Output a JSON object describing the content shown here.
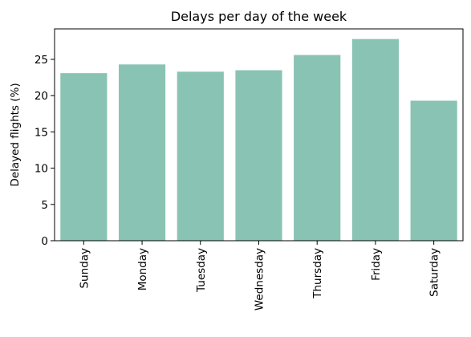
{
  "colors": {
    "bar": "#89c3b4",
    "axis": "#000000",
    "background": "#ffffff"
  },
  "chart_data": {
    "type": "bar",
    "title": "Delays per day of the week",
    "xlabel": "",
    "ylabel": "Delayed flights (%)",
    "categories": [
      "Sunday",
      "Monday",
      "Tuesday",
      "Wednesday",
      "Thursday",
      "Friday",
      "Saturday"
    ],
    "values": [
      23.1,
      24.3,
      23.3,
      23.5,
      25.6,
      27.8,
      19.3
    ],
    "ylim": [
      0,
      29.2
    ],
    "yticks": [
      0,
      5,
      10,
      15,
      20,
      25
    ],
    "grid": false,
    "legend": null
  }
}
